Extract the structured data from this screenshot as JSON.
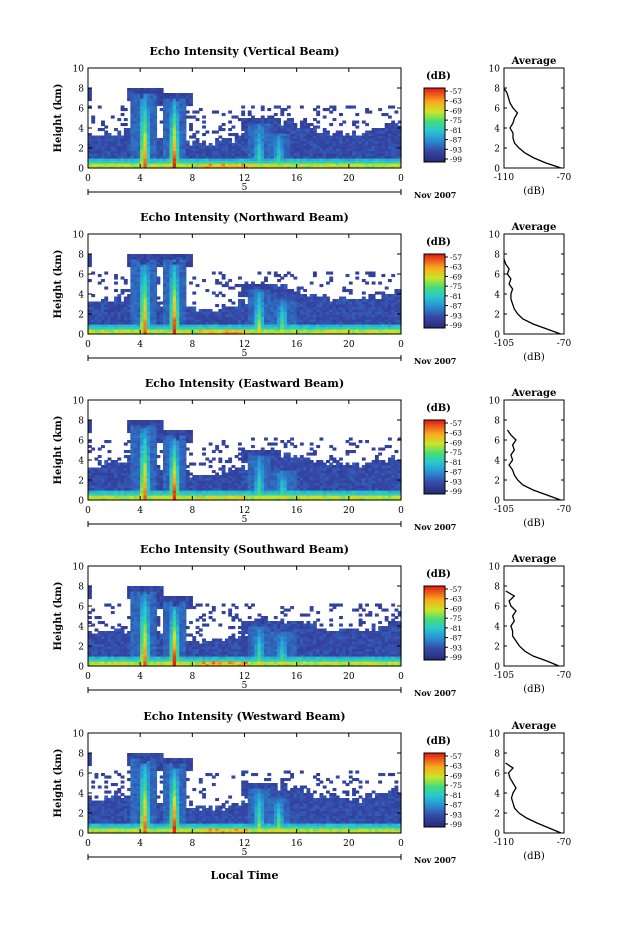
{
  "common": {
    "ylabel": "Height (km)",
    "y_ticks": [
      "0",
      "2",
      "4",
      "6",
      "8",
      "10"
    ],
    "x_ticks": [
      "0",
      "4",
      "8",
      "12",
      "16",
      "20",
      "0"
    ],
    "date_mark": "5",
    "date_label": "Nov 2007",
    "colorbar_title": "(dB)",
    "colorbar_ticks": [
      "-57",
      "-63",
      "-69",
      "-75",
      "-81",
      "-87",
      "-93",
      "-99"
    ],
    "avg_title": "Average",
    "avg_xlabel": "(dB)",
    "xlabel": "Local Time"
  },
  "chart_data": [
    {
      "type": "heatmap",
      "title": "Echo Intensity (Vertical Beam)",
      "xlabel": "Local Time",
      "ylabel": "Height (km)",
      "xlim": [
        0,
        24
      ],
      "ylim": [
        0,
        10
      ],
      "color_range": [
        -99,
        -57
      ],
      "features": [
        {
          "kind": "convective",
          "x": 4.2,
          "top": 7.5,
          "peak": -57
        },
        {
          "kind": "convective",
          "x": 6.5,
          "top": 7.0,
          "peak": -57
        },
        {
          "kind": "stratiform",
          "x_range": [
            8.5,
            12
          ],
          "height": 0.4,
          "peak": -62
        },
        {
          "kind": "convective",
          "x": 13.0,
          "top": 4.5,
          "peak": -78
        },
        {
          "kind": "convective",
          "x": 14.5,
          "top": 3.5,
          "peak": -78
        }
      ],
      "average": {
        "xlim": [
          -110,
          -70
        ],
        "x_tick_labels": [
          "-110",
          "-70"
        ],
        "heights": [
          0,
          0.5,
          1,
          1.5,
          2,
          2.5,
          3,
          3.5,
          4,
          4.5,
          5,
          5.5,
          6,
          6.5,
          7,
          7.5,
          8
        ],
        "values": [
          -72,
          -82,
          -90,
          -96,
          -100,
          -103,
          -104,
          -104,
          -106,
          -104,
          -103,
          -101,
          -104,
          -106,
          -107,
          -108,
          -110
        ]
      }
    },
    {
      "type": "heatmap",
      "title": "Echo Intensity (Northward Beam)",
      "xlabel": "Local Time",
      "ylabel": "Height (km)",
      "xlim": [
        0,
        24
      ],
      "ylim": [
        0,
        10
      ],
      "color_range": [
        -99,
        -57
      ],
      "features": [
        {
          "kind": "convective",
          "x": 4.2,
          "top": 7.5,
          "peak": -57
        },
        {
          "kind": "convective",
          "x": 6.5,
          "top": 7.5,
          "peak": -57
        },
        {
          "kind": "stratiform",
          "x_range": [
            8.5,
            12
          ],
          "height": 0.4,
          "peak": -62
        },
        {
          "kind": "convective",
          "x": 13.0,
          "top": 4.5,
          "peak": -70
        },
        {
          "kind": "convective",
          "x": 14.8,
          "top": 3.5,
          "peak": -70
        }
      ],
      "average": {
        "xlim": [
          -105,
          -70
        ],
        "x_tick_labels": [
          "-105",
          "-70"
        ],
        "heights": [
          0,
          0.5,
          1,
          1.5,
          2,
          2.5,
          3,
          3.5,
          4,
          4.5,
          5,
          5.5,
          6,
          6.5,
          7,
          7.5
        ],
        "values": [
          -72,
          -80,
          -88,
          -94,
          -97,
          -99,
          -100,
          -101,
          -101,
          -100,
          -102,
          -101,
          -103,
          -102,
          -104,
          -105
        ]
      }
    },
    {
      "type": "heatmap",
      "title": "Echo Intensity (Eastward Beam)",
      "xlabel": "Local Time",
      "ylabel": "Height (km)",
      "xlim": [
        0,
        24
      ],
      "ylim": [
        0,
        10
      ],
      "color_range": [
        -99,
        -57
      ],
      "features": [
        {
          "kind": "convective",
          "x": 4.2,
          "top": 7.5,
          "peak": -57
        },
        {
          "kind": "convective",
          "x": 6.5,
          "top": 6.5,
          "peak": -57
        },
        {
          "kind": "stratiform",
          "x_range": [
            8.5,
            12
          ],
          "height": 0.4,
          "peak": -65
        },
        {
          "kind": "convective",
          "x": 13.0,
          "top": 4.5,
          "peak": -75
        },
        {
          "kind": "convective",
          "x": 14.8,
          "top": 3.0,
          "peak": -75
        }
      ],
      "average": {
        "xlim": [
          -105,
          -70
        ],
        "x_tick_labels": [
          "-105",
          "-70"
        ],
        "heights": [
          0,
          0.5,
          1,
          1.5,
          2,
          2.5,
          3,
          3.5,
          4,
          4.5,
          5,
          5.5,
          6,
          6.5,
          7
        ],
        "values": [
          -72,
          -80,
          -88,
          -94,
          -97,
          -99,
          -100,
          -102,
          -100,
          -101,
          -99,
          -100,
          -98,
          -101,
          -103
        ]
      }
    },
    {
      "type": "heatmap",
      "title": "Echo Intensity (Southward Beam)",
      "xlabel": "Local Time",
      "ylabel": "Height (km)",
      "xlim": [
        0,
        24
      ],
      "ylim": [
        0,
        10
      ],
      "color_range": [
        -99,
        -57
      ],
      "features": [
        {
          "kind": "convective",
          "x": 4.2,
          "top": 7.5,
          "peak": -57
        },
        {
          "kind": "convective",
          "x": 6.5,
          "top": 6.5,
          "peak": -57
        },
        {
          "kind": "stratiform",
          "x_range": [
            8.5,
            12
          ],
          "height": 0.5,
          "peak": -60
        },
        {
          "kind": "convective",
          "x": 13.0,
          "top": 4.0,
          "peak": -75
        },
        {
          "kind": "convective",
          "x": 14.8,
          "top": 3.5,
          "peak": -75
        }
      ],
      "average": {
        "xlim": [
          -105,
          -70
        ],
        "x_tick_labels": [
          "-105",
          "-70"
        ],
        "heights": [
          0,
          0.5,
          1,
          1.5,
          2,
          2.5,
          3,
          3.5,
          4,
          4.5,
          5,
          5.5,
          6,
          6.5,
          7,
          7.5
        ],
        "values": [
          -73,
          -80,
          -88,
          -93,
          -96,
          -98,
          -100,
          -100,
          -101,
          -99,
          -100,
          -98,
          -101,
          -102,
          -99,
          -104
        ]
      }
    },
    {
      "type": "heatmap",
      "title": "Echo Intensity (Westward Beam)",
      "xlabel": "Local Time",
      "ylabel": "Height (km)",
      "xlim": [
        0,
        24
      ],
      "ylim": [
        0,
        10
      ],
      "color_range": [
        -99,
        -57
      ],
      "features": [
        {
          "kind": "convective",
          "x": 4.2,
          "top": 7.5,
          "peak": -57
        },
        {
          "kind": "convective",
          "x": 6.5,
          "top": 7.0,
          "peak": -57
        },
        {
          "kind": "stratiform",
          "x_range": [
            8.5,
            12
          ],
          "height": 0.4,
          "peak": -62
        },
        {
          "kind": "convective",
          "x": 13.0,
          "top": 4.5,
          "peak": -72
        },
        {
          "kind": "convective",
          "x": 14.5,
          "top": 3.5,
          "peak": -72
        }
      ],
      "average": {
        "xlim": [
          -110,
          -70
        ],
        "x_tick_labels": [
          "-110",
          "-70"
        ],
        "heights": [
          0,
          0.5,
          1,
          1.5,
          2,
          2.5,
          3,
          3.5,
          4,
          4.5,
          5,
          5.5,
          6,
          6.5,
          7
        ],
        "values": [
          -72,
          -80,
          -88,
          -95,
          -100,
          -103,
          -104,
          -105,
          -104,
          -102,
          -104,
          -106,
          -107,
          -104,
          -109
        ]
      }
    }
  ]
}
